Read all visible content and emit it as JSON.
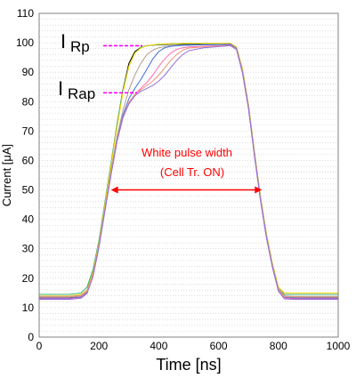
{
  "chart_data": {
    "type": "line",
    "title": "",
    "xlabel": "Time [ns]",
    "ylabel": "Current [μA]",
    "xlim": [
      0,
      1000
    ],
    "ylim": [
      0,
      110
    ],
    "xticks": [
      0,
      200,
      400,
      600,
      800,
      1000
    ],
    "yticks": [
      0,
      10,
      20,
      30,
      40,
      50,
      60,
      70,
      80,
      90,
      100,
      110
    ],
    "grid": "dotted horizontal",
    "x": [
      0,
      100,
      140,
      160,
      180,
      200,
      220,
      240,
      260,
      280,
      300,
      320,
      340,
      360,
      380,
      400,
      420,
      440,
      460,
      480,
      500,
      550,
      600,
      640,
      660,
      680,
      700,
      720,
      740,
      760,
      780,
      800,
      820,
      850,
      900,
      1000
    ],
    "series": [
      {
        "color": "#000000",
        "values": [
          13.5,
          13.5,
          14,
          16,
          22,
          32,
          45,
          58,
          72,
          84,
          93,
          97,
          98.5,
          99,
          99.2,
          99.3,
          99.4,
          99.5,
          99.5,
          99.5,
          99.5,
          99.6,
          99.7,
          99.7,
          98,
          90,
          78,
          62,
          47,
          34,
          24,
          16,
          14,
          13.5,
          13.5,
          13.5
        ]
      },
      {
        "color": "#3cb371",
        "values": [
          14.5,
          14.5,
          15,
          17,
          23,
          33,
          46,
          59,
          72,
          84,
          92,
          96.5,
          98.5,
          99,
          99.2,
          99.4,
          99.5,
          99.6,
          99.6,
          99.7,
          99.7,
          99.7,
          99.7,
          99.8,
          98.5,
          91,
          79,
          63,
          48,
          35,
          25,
          17,
          14.5,
          14.5,
          14.5,
          14.5
        ]
      },
      {
        "color": "#ffd700",
        "values": [
          14,
          14,
          14.5,
          16,
          22,
          32,
          45,
          58,
          71,
          83,
          92,
          96.5,
          98.2,
          99,
          99.3,
          99.5,
          99.6,
          99.7,
          99.7,
          99.8,
          99.8,
          99.8,
          99.8,
          99.8,
          98.5,
          91,
          79,
          63,
          48,
          35,
          25,
          17,
          15,
          15,
          15,
          15
        ]
      },
      {
        "color": "#b0a090",
        "values": [
          13.8,
          13.8,
          14.2,
          15.8,
          21.5,
          31.5,
          44,
          56,
          68,
          77,
          84,
          89,
          93,
          96,
          97.5,
          98.3,
          98.7,
          99,
          99.1,
          99.2,
          99.2,
          99.3,
          99.4,
          99.5,
          98.2,
          90.5,
          78.5,
          62.5,
          47.5,
          34.5,
          24.5,
          16.5,
          14,
          13.8,
          13.8,
          13.8
        ]
      },
      {
        "color": "#4169e1",
        "values": [
          13.2,
          13.2,
          13.6,
          15.2,
          21,
          31,
          43.5,
          55.5,
          67,
          75.5,
          81,
          84.5,
          87.5,
          91,
          94.5,
          97,
          98.3,
          98.8,
          99,
          99.1,
          99.2,
          99.3,
          99.4,
          99.5,
          98,
          90,
          78,
          62,
          47,
          34,
          24,
          16,
          13.5,
          13.2,
          13.2,
          13.2
        ]
      },
      {
        "color": "#ff69b4",
        "values": [
          13,
          13,
          13.4,
          15,
          20.8,
          30.8,
          43,
          55,
          66.5,
          74.5,
          79.5,
          82.5,
          84.5,
          86.5,
          89,
          92,
          94.5,
          96.5,
          97.8,
          98.3,
          98.6,
          98.8,
          99,
          99.2,
          97.8,
          89.8,
          77.8,
          61.8,
          46.8,
          33.8,
          23.8,
          15.8,
          13.3,
          13,
          13,
          13
        ]
      },
      {
        "color": "#e9967a",
        "values": [
          13.6,
          13.6,
          14,
          15.6,
          21.2,
          31.2,
          43.5,
          55.5,
          66.8,
          74.8,
          79.8,
          82.5,
          84,
          85.5,
          87,
          89,
          91.5,
          94,
          96,
          97.5,
          98.2,
          98.6,
          98.9,
          99.1,
          97.9,
          90,
          78,
          62,
          47,
          34,
          24,
          16,
          13.8,
          13.6,
          13.6,
          13.6
        ]
      },
      {
        "color": "#9370db",
        "values": [
          12.8,
          12.8,
          13.2,
          14.8,
          20.5,
          30.5,
          42.8,
          54.8,
          66.2,
          74.5,
          79.2,
          82,
          83.5,
          84.5,
          85.5,
          87,
          89,
          91.5,
          94,
          96,
          97.3,
          98.3,
          98.7,
          99,
          97.6,
          89.6,
          77.6,
          61.6,
          46.6,
          33.6,
          23.6,
          15.6,
          13,
          12.8,
          12.8,
          12.8
        ]
      }
    ],
    "annotations": {
      "irp_label": "I",
      "irp_sub": "Rp",
      "irp_level": 99,
      "irap_label": "I",
      "irap_sub": "Rap",
      "irap_level": 83,
      "pulse_label_line1": "White pulse width",
      "pulse_label_line2": "(Cell Tr. ON)",
      "pulse_arrow_from": 240,
      "pulse_arrow_to": 745,
      "pulse_arrow_level": 50
    },
    "colors": {
      "axis": "#808080",
      "grid": "#c8c8c8",
      "marker": "#ff00ff",
      "arrow": "#ff0000",
      "annotation": "#ff0000"
    }
  }
}
